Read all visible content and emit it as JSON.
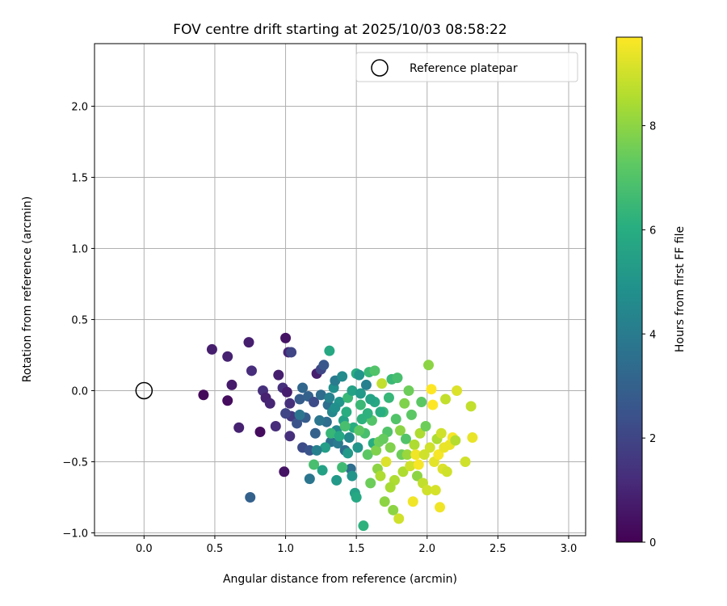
{
  "chart_data": {
    "type": "scatter",
    "title": "FOV centre drift starting at 2025/10/03 08:58:22",
    "xlabel": "Angular distance from reference (arcmin)",
    "ylabel": "Rotation from reference (arcmin)",
    "xlim": [
      -0.35,
      3.12
    ],
    "ylim": [
      -1.02,
      2.44
    ],
    "xticks": [
      0.0,
      0.5,
      1.0,
      1.5,
      2.0,
      2.5,
      3.0
    ],
    "yticks": [
      -1.0,
      -0.5,
      0.0,
      0.5,
      1.0,
      1.5,
      2.0
    ],
    "xtick_labels": [
      "0.0",
      "0.5",
      "1.0",
      "1.5",
      "2.0",
      "2.5",
      "3.0"
    ],
    "ytick_labels": [
      "−1.0",
      "−0.5",
      "0.0",
      "0.5",
      "1.0",
      "1.5",
      "2.0"
    ],
    "grid": true,
    "legend": {
      "position": "top-right",
      "entries": [
        "Reference platepar"
      ]
    },
    "reference_point": {
      "x": 0.0,
      "y": 0.0,
      "label": "Reference platepar"
    },
    "colorbar": {
      "label": "Hours from first FF file",
      "colormap": "viridis",
      "range": [
        0,
        9.7
      ],
      "ticks": [
        0,
        2,
        4,
        6,
        8
      ],
      "tick_labels": [
        "0",
        "2",
        "4",
        "6",
        "8"
      ]
    },
    "series": [
      {
        "name": "FOV centre drift",
        "points": [
          [
            0.42,
            -0.03,
            0.2
          ],
          [
            0.48,
            0.29,
            0.8
          ],
          [
            0.59,
            -0.07,
            0.3
          ],
          [
            0.59,
            0.24,
            0.9
          ],
          [
            0.62,
            0.04,
            0.7
          ],
          [
            0.67,
            -0.26,
            0.9
          ],
          [
            0.74,
            0.34,
            0.8
          ],
          [
            0.76,
            0.14,
            1.2
          ],
          [
            0.82,
            -0.29,
            0.3
          ],
          [
            0.84,
            0.0,
            1.3
          ],
          [
            0.86,
            -0.05,
            0.9
          ],
          [
            0.89,
            -0.09,
            1.0
          ],
          [
            0.93,
            -0.25,
            1.2
          ],
          [
            0.95,
            0.11,
            0.8
          ],
          [
            0.98,
            0.02,
            1.3
          ],
          [
            1.0,
            0.37,
            0.5
          ],
          [
            1.02,
            0.27,
            1.0
          ],
          [
            1.04,
            0.27,
            2.0
          ],
          [
            1.01,
            -0.01,
            0.8
          ],
          [
            1.03,
            -0.09,
            1.3
          ],
          [
            1.04,
            -0.18,
            1.6
          ],
          [
            1.0,
            -0.16,
            2.0
          ],
          [
            1.03,
            -0.32,
            1.3
          ],
          [
            0.99,
            -0.57,
            0.5
          ],
          [
            0.75,
            -0.75,
            3.0
          ],
          [
            1.08,
            -0.23,
            2.5
          ],
          [
            1.1,
            -0.06,
            2.8
          ],
          [
            1.12,
            -0.4,
            2.2
          ],
          [
            1.12,
            0.02,
            3.2
          ],
          [
            1.14,
            -0.19,
            2.8
          ],
          [
            1.16,
            -0.04,
            3.0
          ],
          [
            1.17,
            -0.42,
            2.5
          ],
          [
            1.2,
            -0.08,
            2.2
          ],
          [
            1.22,
            0.12,
            0.8
          ],
          [
            1.21,
            -0.3,
            3.0
          ],
          [
            1.25,
            -0.03,
            3.4
          ],
          [
            1.25,
            0.15,
            2.0
          ],
          [
            1.27,
            0.18,
            2.6
          ],
          [
            1.29,
            -0.22,
            3.5
          ],
          [
            1.3,
            -0.1,
            3.5
          ],
          [
            1.31,
            -0.05,
            4.2
          ],
          [
            1.32,
            -0.36,
            3.6
          ],
          [
            1.33,
            -0.15,
            4.5
          ],
          [
            1.34,
            0.02,
            4.8
          ],
          [
            1.35,
            0.07,
            4.0
          ],
          [
            1.36,
            -0.28,
            4.5
          ],
          [
            1.37,
            -0.37,
            4.0
          ],
          [
            1.38,
            -0.08,
            5.0
          ],
          [
            1.4,
            0.1,
            4.6
          ],
          [
            1.41,
            -0.21,
            5.5
          ],
          [
            1.42,
            -0.42,
            3.5
          ],
          [
            1.43,
            -0.15,
            6.0
          ],
          [
            1.44,
            -0.05,
            6.5
          ],
          [
            1.45,
            -0.33,
            4.5
          ],
          [
            1.46,
            -0.55,
            3.5
          ],
          [
            1.47,
            0.0,
            5.5
          ],
          [
            1.48,
            -0.26,
            6.0
          ],
          [
            1.49,
            -0.72,
            5.5
          ],
          [
            1.5,
            -0.75,
            5.8
          ],
          [
            1.5,
            0.12,
            6.0
          ],
          [
            1.51,
            -0.4,
            5.0
          ],
          [
            1.52,
            0.11,
            5.0
          ],
          [
            1.53,
            -0.1,
            6.5
          ],
          [
            1.54,
            -0.2,
            6.2
          ],
          [
            1.55,
            -0.95,
            6.2
          ],
          [
            1.56,
            -0.3,
            6.8
          ],
          [
            1.57,
            0.04,
            4.2
          ],
          [
            1.58,
            -0.45,
            7.2
          ],
          [
            1.59,
            0.13,
            6.5
          ],
          [
            1.6,
            -0.65,
            7.5
          ],
          [
            1.61,
            -0.21,
            7.0
          ],
          [
            1.62,
            -0.37,
            6.0
          ],
          [
            1.63,
            -0.08,
            5.8
          ],
          [
            1.64,
            -0.42,
            7.8
          ],
          [
            1.65,
            -0.55,
            8.0
          ],
          [
            1.66,
            -0.36,
            7.5
          ],
          [
            1.67,
            -0.6,
            8.5
          ],
          [
            1.68,
            0.05,
            8.8
          ],
          [
            1.69,
            -0.15,
            6.5
          ],
          [
            1.7,
            -0.78,
            8.0
          ],
          [
            1.71,
            -0.5,
            9.2
          ],
          [
            1.72,
            -0.29,
            7.0
          ],
          [
            1.73,
            -0.05,
            6.4
          ],
          [
            1.74,
            -0.4,
            7.8
          ],
          [
            1.75,
            0.08,
            6.5
          ],
          [
            1.76,
            -0.84,
            8.0
          ],
          [
            1.77,
            -0.63,
            8.5
          ],
          [
            1.78,
            -0.2,
            7.0
          ],
          [
            1.79,
            0.09,
            6.8
          ],
          [
            1.8,
            -0.9,
            9.0
          ],
          [
            1.81,
            -0.28,
            8.0
          ],
          [
            1.82,
            -0.45,
            7.5
          ],
          [
            1.83,
            -0.57,
            8.5
          ],
          [
            1.84,
            -0.09,
            7.8
          ],
          [
            1.85,
            -0.34,
            7.0
          ],
          [
            1.86,
            -0.45,
            8.2
          ],
          [
            1.87,
            0.0,
            7.5
          ],
          [
            1.88,
            -0.53,
            9.0
          ],
          [
            1.89,
            -0.17,
            7.2
          ],
          [
            1.9,
            -0.78,
            9.5
          ],
          [
            1.91,
            -0.38,
            8.5
          ],
          [
            1.92,
            -0.45,
            9.5
          ],
          [
            1.93,
            -0.6,
            8.0
          ],
          [
            1.94,
            -0.52,
            9.6
          ],
          [
            1.95,
            -0.3,
            8.5
          ],
          [
            1.96,
            -0.08,
            7.2
          ],
          [
            1.97,
            -0.65,
            8.8
          ],
          [
            1.98,
            -0.45,
            9.0
          ],
          [
            1.99,
            -0.25,
            7.5
          ],
          [
            2.0,
            -0.7,
            9.0
          ],
          [
            2.01,
            0.18,
            8.0
          ],
          [
            2.02,
            -0.4,
            9.0
          ],
          [
            2.03,
            0.01,
            9.7
          ],
          [
            2.04,
            -0.1,
            9.7
          ],
          [
            2.05,
            -0.5,
            9.3
          ],
          [
            2.06,
            -0.7,
            9.1
          ],
          [
            2.07,
            -0.34,
            8.5
          ],
          [
            2.08,
            -0.45,
            9.6
          ],
          [
            2.09,
            -0.82,
            9.5
          ],
          [
            2.1,
            -0.3,
            9.0
          ],
          [
            2.11,
            -0.55,
            9.2
          ],
          [
            2.12,
            -0.4,
            9.4
          ],
          [
            2.13,
            -0.06,
            8.8
          ],
          [
            2.14,
            -0.57,
            9.0
          ],
          [
            2.16,
            -0.38,
            9.4
          ],
          [
            2.18,
            -0.33,
            9.6
          ],
          [
            2.2,
            -0.35,
            8.6
          ],
          [
            2.21,
            0.0,
            9.2
          ],
          [
            2.27,
            -0.5,
            9.0
          ],
          [
            2.31,
            -0.11,
            8.8
          ],
          [
            2.32,
            -0.33,
            9.4
          ],
          [
            1.2,
            -0.52,
            6.8
          ],
          [
            1.26,
            -0.56,
            5.5
          ],
          [
            1.4,
            -0.54,
            6.6
          ],
          [
            1.36,
            -0.63,
            5.2
          ],
          [
            1.28,
            -0.4,
            5.4
          ],
          [
            1.32,
            -0.3,
            6.4
          ],
          [
            1.38,
            -0.32,
            5.8
          ],
          [
            1.47,
            -0.6,
            5.0
          ],
          [
            1.53,
            -0.02,
            5.2
          ],
          [
            1.17,
            -0.62,
            3.8
          ],
          [
            1.1,
            -0.17,
            3.8
          ],
          [
            1.22,
            -0.42,
            4.2
          ],
          [
            1.31,
            0.28,
            5.8
          ],
          [
            1.44,
            -0.44,
            5.2
          ],
          [
            1.58,
            -0.16,
            6.2
          ],
          [
            1.63,
            0.14,
            7.0
          ],
          [
            1.69,
            -0.34,
            7.4
          ],
          [
            1.52,
            -0.28,
            7.2
          ],
          [
            1.42,
            -0.25,
            6.8
          ],
          [
            1.74,
            -0.68,
            8.4
          ],
          [
            1.6,
            -0.06,
            5.6
          ],
          [
            1.67,
            -0.15,
            6.0
          ],
          [
            1.35,
            -0.12,
            4.8
          ],
          [
            1.24,
            -0.21,
            3.8
          ]
        ]
      }
    ]
  }
}
